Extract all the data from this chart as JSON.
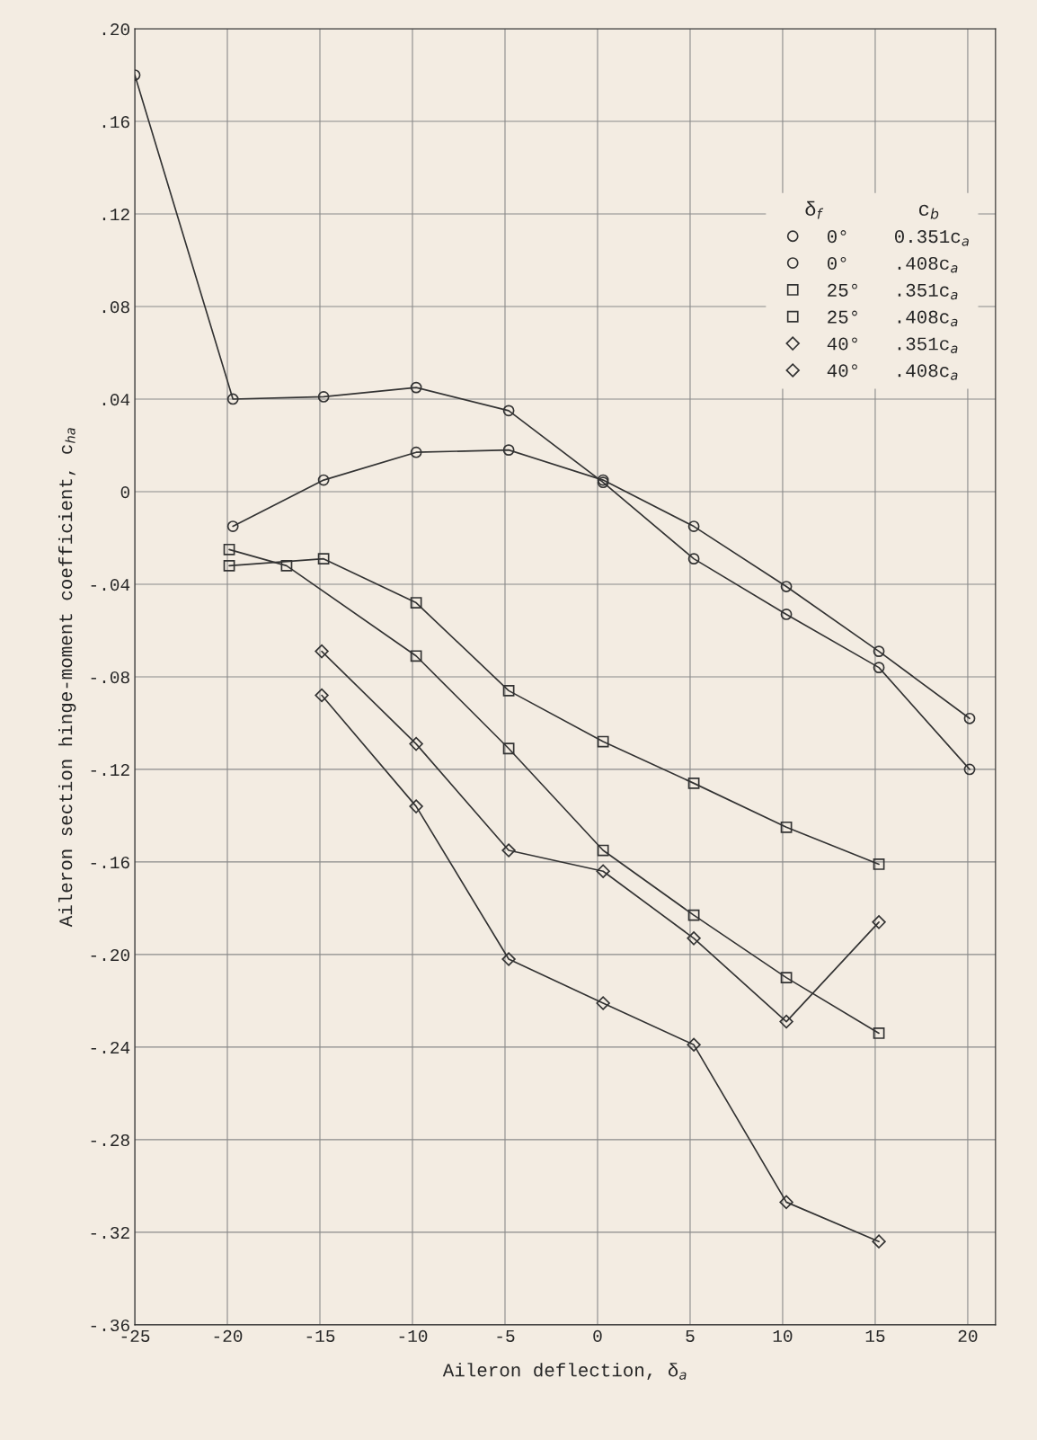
{
  "chart_data": {
    "type": "line",
    "xlabel": "Aileron deflection, δ$_{a}$",
    "ylabel": "Aileron section hinge-moment coefficient, c$_{ha}$",
    "legend_title": "δ$_{f}$        c$_{b}$",
    "legend": "top right",
    "grid": true,
    "xlim": [
      -25,
      21.5
    ],
    "ylim": [
      -0.36,
      0.2
    ],
    "xticks": [
      -25,
      -20,
      -15,
      -10,
      -5,
      0,
      5,
      10,
      15,
      20
    ],
    "yticks": [
      {
        "value": 0.2,
        "label": ".20"
      },
      {
        "value": 0.16,
        "label": ".16"
      },
      {
        "value": 0.12,
        "label": ".12"
      },
      {
        "value": 0.08,
        "label": ".08"
      },
      {
        "value": 0.04,
        "label": ".04"
      },
      {
        "value": 0,
        "label": "0"
      },
      {
        "value": -0.04,
        "label": "-.04"
      },
      {
        "value": -0.08,
        "label": "-.08"
      },
      {
        "value": -0.12,
        "label": "-.12"
      },
      {
        "value": -0.16,
        "label": "-.16"
      },
      {
        "value": -0.2,
        "label": "-.20"
      },
      {
        "value": -0.24,
        "label": "-.24"
      },
      {
        "value": -0.28,
        "label": "-.28"
      },
      {
        "value": -0.32,
        "label": "-.32"
      },
      {
        "value": -0.36,
        "label": "-.36"
      }
    ],
    "series": [
      {
        "name": "0°    0.351c$_{a}$",
        "marker": "circle",
        "color": "#333333",
        "x": [
          -25,
          -19.7,
          -14.8,
          -9.8,
          -4.8,
          0.3,
          5.2,
          10.2,
          15.2,
          20.1
        ],
        "values": [
          0.18,
          0.04,
          0.041,
          0.045,
          0.035,
          0.004,
          -0.029,
          -0.053,
          -0.076,
          -0.12
        ]
      },
      {
        "name": "0°    .408c$_{a}$",
        "marker": "circle",
        "color": "#333333",
        "x": [
          -19.7,
          -14.8,
          -9.8,
          -4.8,
          0.3,
          5.2,
          10.2,
          15.2,
          20.1
        ],
        "values": [
          -0.015,
          0.005,
          0.017,
          0.018,
          0.005,
          -0.015,
          -0.041,
          -0.069,
          -0.098
        ]
      },
      {
        "name": "25°   .351c$_{a}$",
        "marker": "square",
        "color": "#333333",
        "x": [
          -19.9,
          -16.8,
          -9.8,
          -4.8,
          0.3,
          5.2,
          10.2,
          15.2
        ],
        "values": [
          -0.025,
          -0.032,
          -0.071,
          -0.111,
          -0.155,
          -0.183,
          -0.21,
          -0.234
        ]
      },
      {
        "name": "25°   .408c$_{a}$",
        "marker": "square",
        "color": "#333333",
        "x": [
          -19.9,
          -14.8,
          -9.8,
          -4.8,
          0.3,
          5.2,
          10.2,
          15.2
        ],
        "values": [
          -0.032,
          -0.029,
          -0.048,
          -0.086,
          -0.108,
          -0.126,
          -0.145,
          -0.161
        ]
      },
      {
        "name": "40°   .351c$_{a}$",
        "marker": "diamond",
        "color": "#333333",
        "x": [
          -14.9,
          -9.8,
          -4.8,
          0.3,
          5.2,
          10.2,
          15.2
        ],
        "values": [
          -0.088,
          -0.136,
          -0.202,
          -0.221,
          -0.239,
          -0.307,
          -0.324
        ]
      },
      {
        "name": "40°   .408c$_{a}$",
        "marker": "diamond",
        "color": "#333333",
        "x": [
          -14.9,
          -9.8,
          -4.8,
          0.3,
          5.2,
          10.2,
          15.2
        ],
        "values": [
          -0.069,
          -0.109,
          -0.155,
          -0.164,
          -0.193,
          -0.229,
          -0.186
        ]
      }
    ]
  }
}
